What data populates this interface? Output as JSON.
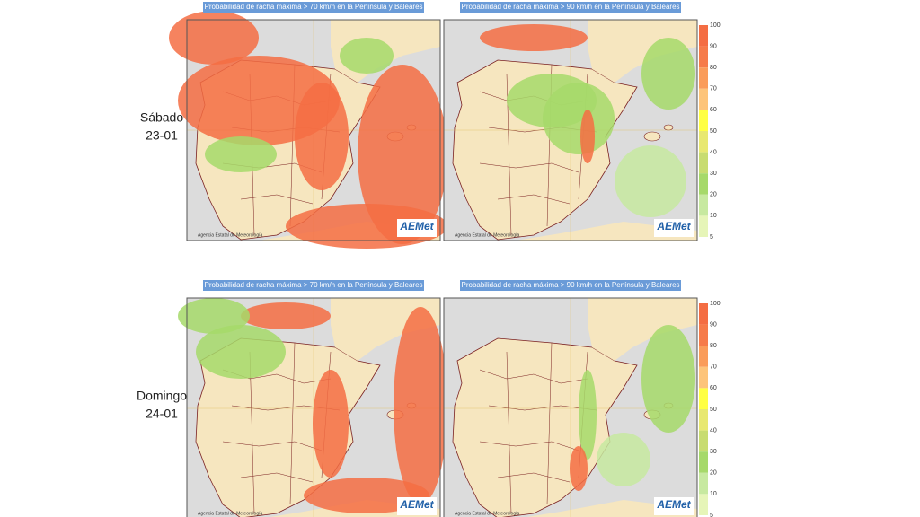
{
  "rows": [
    {
      "label": {
        "day": "Sábado",
        "date": "23-01"
      },
      "panels": [
        {
          "title": "Probabilidad de racha máxima > 70 km/h en la Península y Baleares",
          "credit": "Agencia Estatal de Meteorología",
          "logo": "AEMet"
        },
        {
          "title": "Probabilidad de racha máxima > 90 km/h en la Península y Baleares",
          "credit": "Agencia Estatal de Meteorología",
          "logo": "AEMet"
        }
      ]
    },
    {
      "label": {
        "day": "Domingo",
        "date": "24-01"
      },
      "panels": [
        {
          "title": "Probabilidad de racha máxima > 70 km/h en la Península y Baleares",
          "credit": "Agencia Estatal de Meteorología",
          "logo": "AEMet"
        },
        {
          "title": "Probabilidad de racha máxima > 90 km/h en la Península y Baleares",
          "credit": "Agencia Estatal de Meteorología",
          "logo": "AEMet"
        }
      ]
    }
  ],
  "legends": [
    {
      "ticks": [
        100,
        90,
        80,
        70,
        60,
        50,
        40,
        30,
        20,
        10,
        5
      ]
    },
    {
      "ticks": [
        100,
        90,
        80,
        70,
        60,
        50,
        40,
        30,
        20,
        10,
        5
      ]
    }
  ]
}
